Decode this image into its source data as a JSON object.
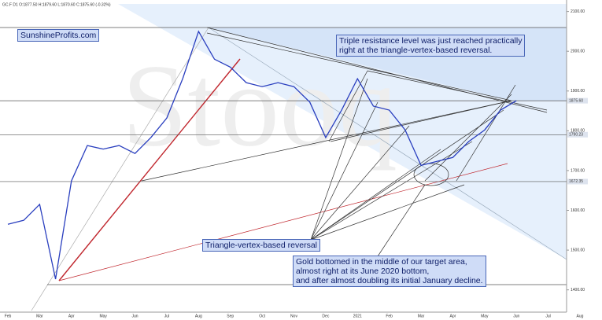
{
  "chart_data": {
    "type": "line",
    "header": "GC.F  D1  O:1877.50  H:1879.60  L:1870.60  C:1875.60  (-0.32%)",
    "watermark": "Stooq",
    "categories": [
      "Feb",
      null,
      "Mar",
      null,
      "Apr",
      null,
      "May",
      null,
      "Jun",
      null,
      "Jul",
      null,
      "Aug",
      null,
      "Sep",
      null,
      "Oct",
      null,
      "Nov",
      null,
      "Dec",
      null,
      "2021",
      null,
      "Feb",
      null,
      "Mar",
      null,
      "Apr",
      null,
      "May",
      null,
      "Jun",
      null,
      "Jul",
      null,
      "Aug"
    ],
    "series": [
      {
        "name": "GC.F",
        "color": "#2a3fbf",
        "values": [
          1565,
          1575,
          1615,
          1427,
          1674,
          1763,
          1754,
          1763,
          1743,
          1783,
          1832,
          1931,
          2050,
          1980,
          1960,
          1921,
          1911,
          1921,
          1911,
          1872,
          1783,
          1852,
          1931,
          1862,
          1852,
          1802,
          1713,
          1723,
          1733,
          1773,
          1802,
          1852,
          1875.6,
          null,
          null,
          null,
          null
        ]
      }
    ],
    "ylim": [
      1344,
      2119
    ],
    "yticks": [
      {
        "value": 1400,
        "label": "1400.00"
      },
      {
        "value": 1500,
        "label": "1500.00"
      },
      {
        "value": 1600,
        "label": "1600.00"
      },
      {
        "value": 1700,
        "label": "1700.00"
      },
      {
        "value": 1800,
        "label": "1800.00"
      },
      {
        "value": 1900,
        "label": "1900.00"
      },
      {
        "value": 2000,
        "label": "2000.00"
      },
      {
        "value": 2100,
        "label": "2100.00"
      }
    ],
    "price_lines": [
      {
        "value": 1875.6,
        "label": "1875.60"
      },
      {
        "value": 1790.23,
        "label": "1790.23"
      },
      {
        "value": 1672.35,
        "label": "1672.35"
      }
    ],
    "annotations": {
      "site": [
        "SunshineProfits.com"
      ],
      "triple": [
        "Triple resistance level was just reached practically",
        "right at the triangle-vertex-based reversal."
      ],
      "triangle": [
        "Triangle-vertex-based reversal"
      ],
      "bottom": [
        "Gold bottomed in the middle of our target area,",
        "almost right at its June 2020 bottom,",
        "and after almost doubling its initial January decline."
      ]
    }
  }
}
